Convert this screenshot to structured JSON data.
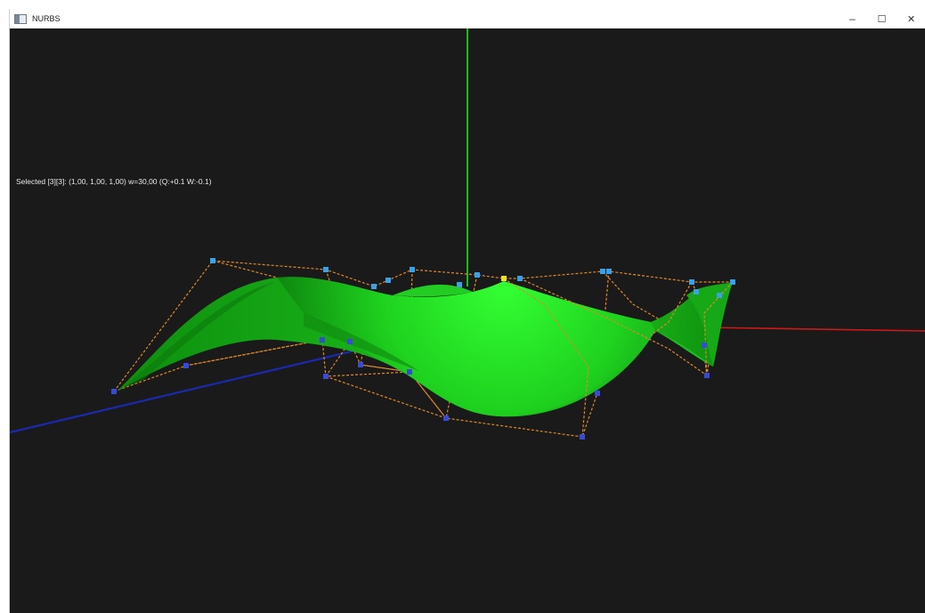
{
  "window": {
    "title": "NURBS",
    "icon": "window-app-icon",
    "controls": {
      "minimize": "–",
      "maximize": "☐",
      "close": "✕"
    }
  },
  "viewport": {
    "status": "Selected [3][3]: (1,00, 1,00, 1,00) w=30,00 (Q:+0.1  W:-0.1)",
    "colors": {
      "background": "#1a1a1a",
      "axis_x": "#d01818",
      "axis_y": "#18c018",
      "axis_z": "#1a2ab0",
      "surface": "#1fc41f",
      "control_net": "#e0882a",
      "control_point_top": "#3aa0e8",
      "control_point_bottom": "#3a4ad8",
      "selected_point": "#f0e020"
    }
  }
}
